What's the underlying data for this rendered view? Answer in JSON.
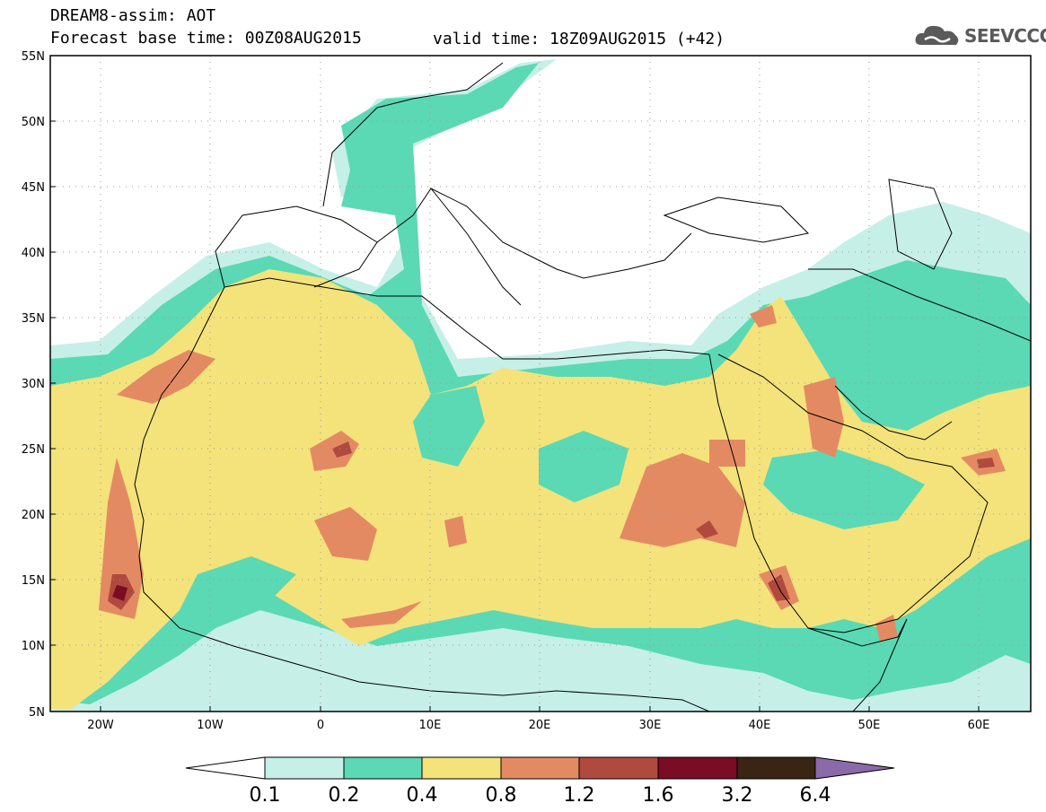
{
  "header": {
    "line1": "DREAM8-assim: AOT",
    "line2_left": "Forecast base time: 00Z08AUG2015",
    "line2_right": "valid time: 18Z09AUG2015 (+42)"
  },
  "logo": {
    "text": "SEEVCCC",
    "icon": "cloud-icon"
  },
  "map": {
    "lat_labels": [
      "55N",
      "50N",
      "45N",
      "40N",
      "35N",
      "30N",
      "25N",
      "20N",
      "15N",
      "10N",
      "5N"
    ],
    "lon_labels": [
      "20W",
      "10W",
      "0",
      "10E",
      "20E",
      "30E",
      "40E",
      "50E",
      "60E"
    ]
  },
  "colorbar": {
    "labels": [
      "0.1",
      "0.2",
      "0.4",
      "0.8",
      "1.2",
      "1.6",
      "3.2",
      "6.4"
    ],
    "colors": [
      "#ffffff",
      "#c6efe8",
      "#5ad9b4",
      "#f4e27b",
      "#e48a62",
      "#b14a3e",
      "#7a0c24",
      "#3a2414",
      "#8a6aa8"
    ]
  },
  "colors": {
    "c02": "#c6efe8",
    "c04": "#5ad9b4",
    "c08": "#f4e27b",
    "c12": "#e48a62",
    "c16": "#b14a3e",
    "c32": "#7a0c24"
  }
}
